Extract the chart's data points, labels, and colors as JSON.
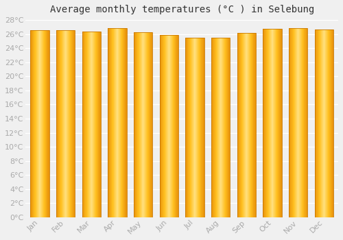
{
  "title": "Average monthly temperatures (°C ) in Selebung",
  "months": [
    "Jan",
    "Feb",
    "Mar",
    "Apr",
    "May",
    "Jun",
    "Jul",
    "Aug",
    "Sep",
    "Oct",
    "Nov",
    "Dec"
  ],
  "values": [
    26.5,
    26.5,
    26.4,
    26.8,
    26.3,
    25.9,
    25.5,
    25.5,
    26.2,
    26.7,
    26.8,
    26.6
  ],
  "ylim": [
    0,
    28
  ],
  "yticks": [
    0,
    2,
    4,
    6,
    8,
    10,
    12,
    14,
    16,
    18,
    20,
    22,
    24,
    26,
    28
  ],
  "bar_color_dark": "#E8920A",
  "bar_color_mid": "#FFC020",
  "bar_color_light": "#FFE080",
  "bar_edge_color": "#C87800",
  "background_color": "#f0f0f0",
  "grid_color": "#ffffff",
  "title_fontsize": 10,
  "tick_fontsize": 8,
  "tick_color": "#aaaaaa"
}
